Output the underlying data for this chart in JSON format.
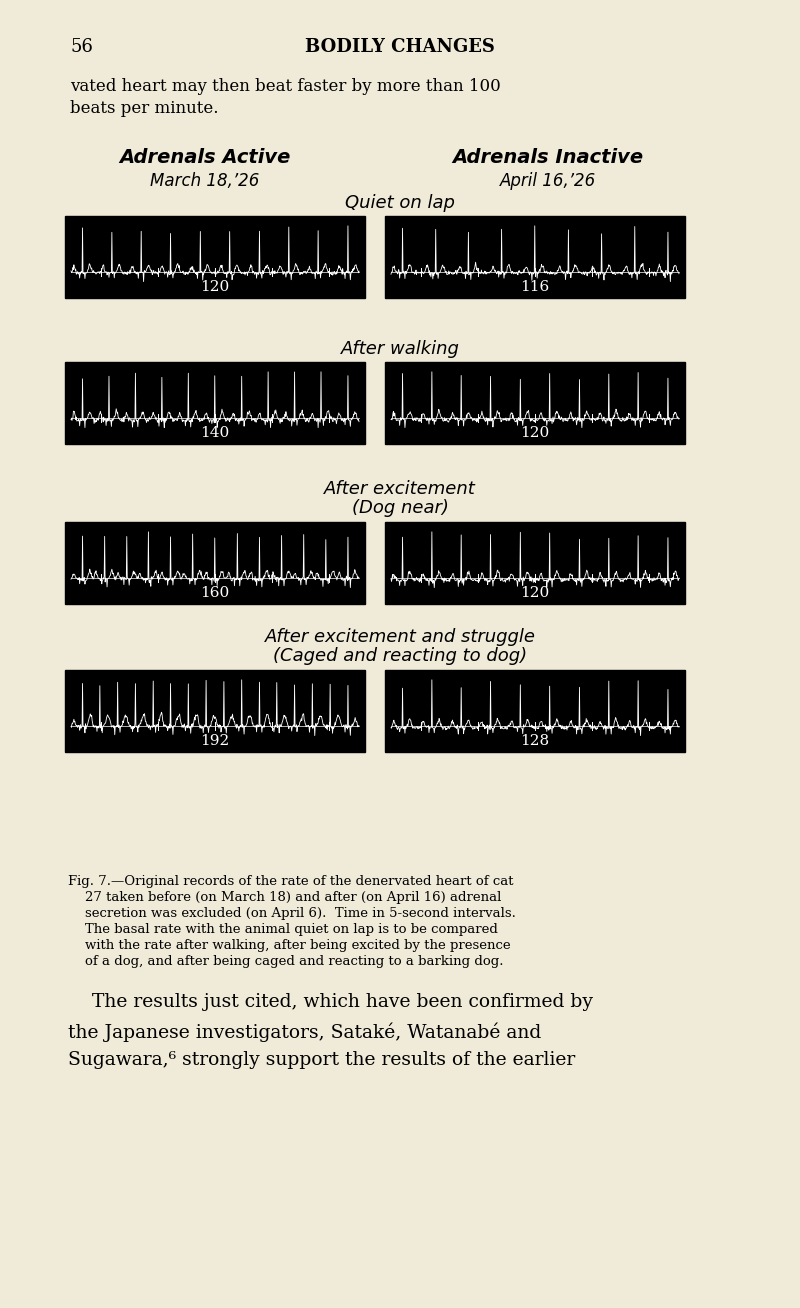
{
  "bg_color": "#f0ead8",
  "page_number": "56",
  "page_header": "BODILY CHANGES",
  "intro_text_line1": "vated heart may then beat faster by more than 100",
  "intro_text_line2": "beats per minute.",
  "left_col_title": "Adrenals Active",
  "left_col_subtitle": "March 18,’26",
  "right_col_title": "Adrenals Inactive",
  "right_col_subtitle": "April 16,’26",
  "row_labels": [
    "Quiet on lap",
    "After walking",
    "After excitement\n(Dog near)",
    "After excitement and struggle\n(Caged and reacting to dog)"
  ],
  "left_bpm": [
    "120",
    "140",
    "160",
    "192"
  ],
  "right_bpm": [
    "116",
    "120",
    "120",
    "128"
  ],
  "caption_line1": "Fig. 7.—Original records of the rate of the denervated heart of cat",
  "caption_line2": "    27 taken before (on March 18) and after (on April 16) adrenal",
  "caption_line3": "    secretion was excluded (on April 6).  Time in 5-second intervals.",
  "caption_line4": "    The basal rate with the animal quiet on lap is to be compared",
  "caption_line5": "    with the rate after walking, after being excited by the presence",
  "caption_line6": "    of a dog, and after being caged and reacting to a barking dog.",
  "body_text_line1": "    The results just cited, which have been confirmed by",
  "body_text_line2": "the Japanese investigators, Sataké, Watanabé and",
  "body_text_line3": "Sugawara,⁶ strongly support the results of the earlier",
  "ecg_color": "#ffffff",
  "ecg_bg": "#000000"
}
